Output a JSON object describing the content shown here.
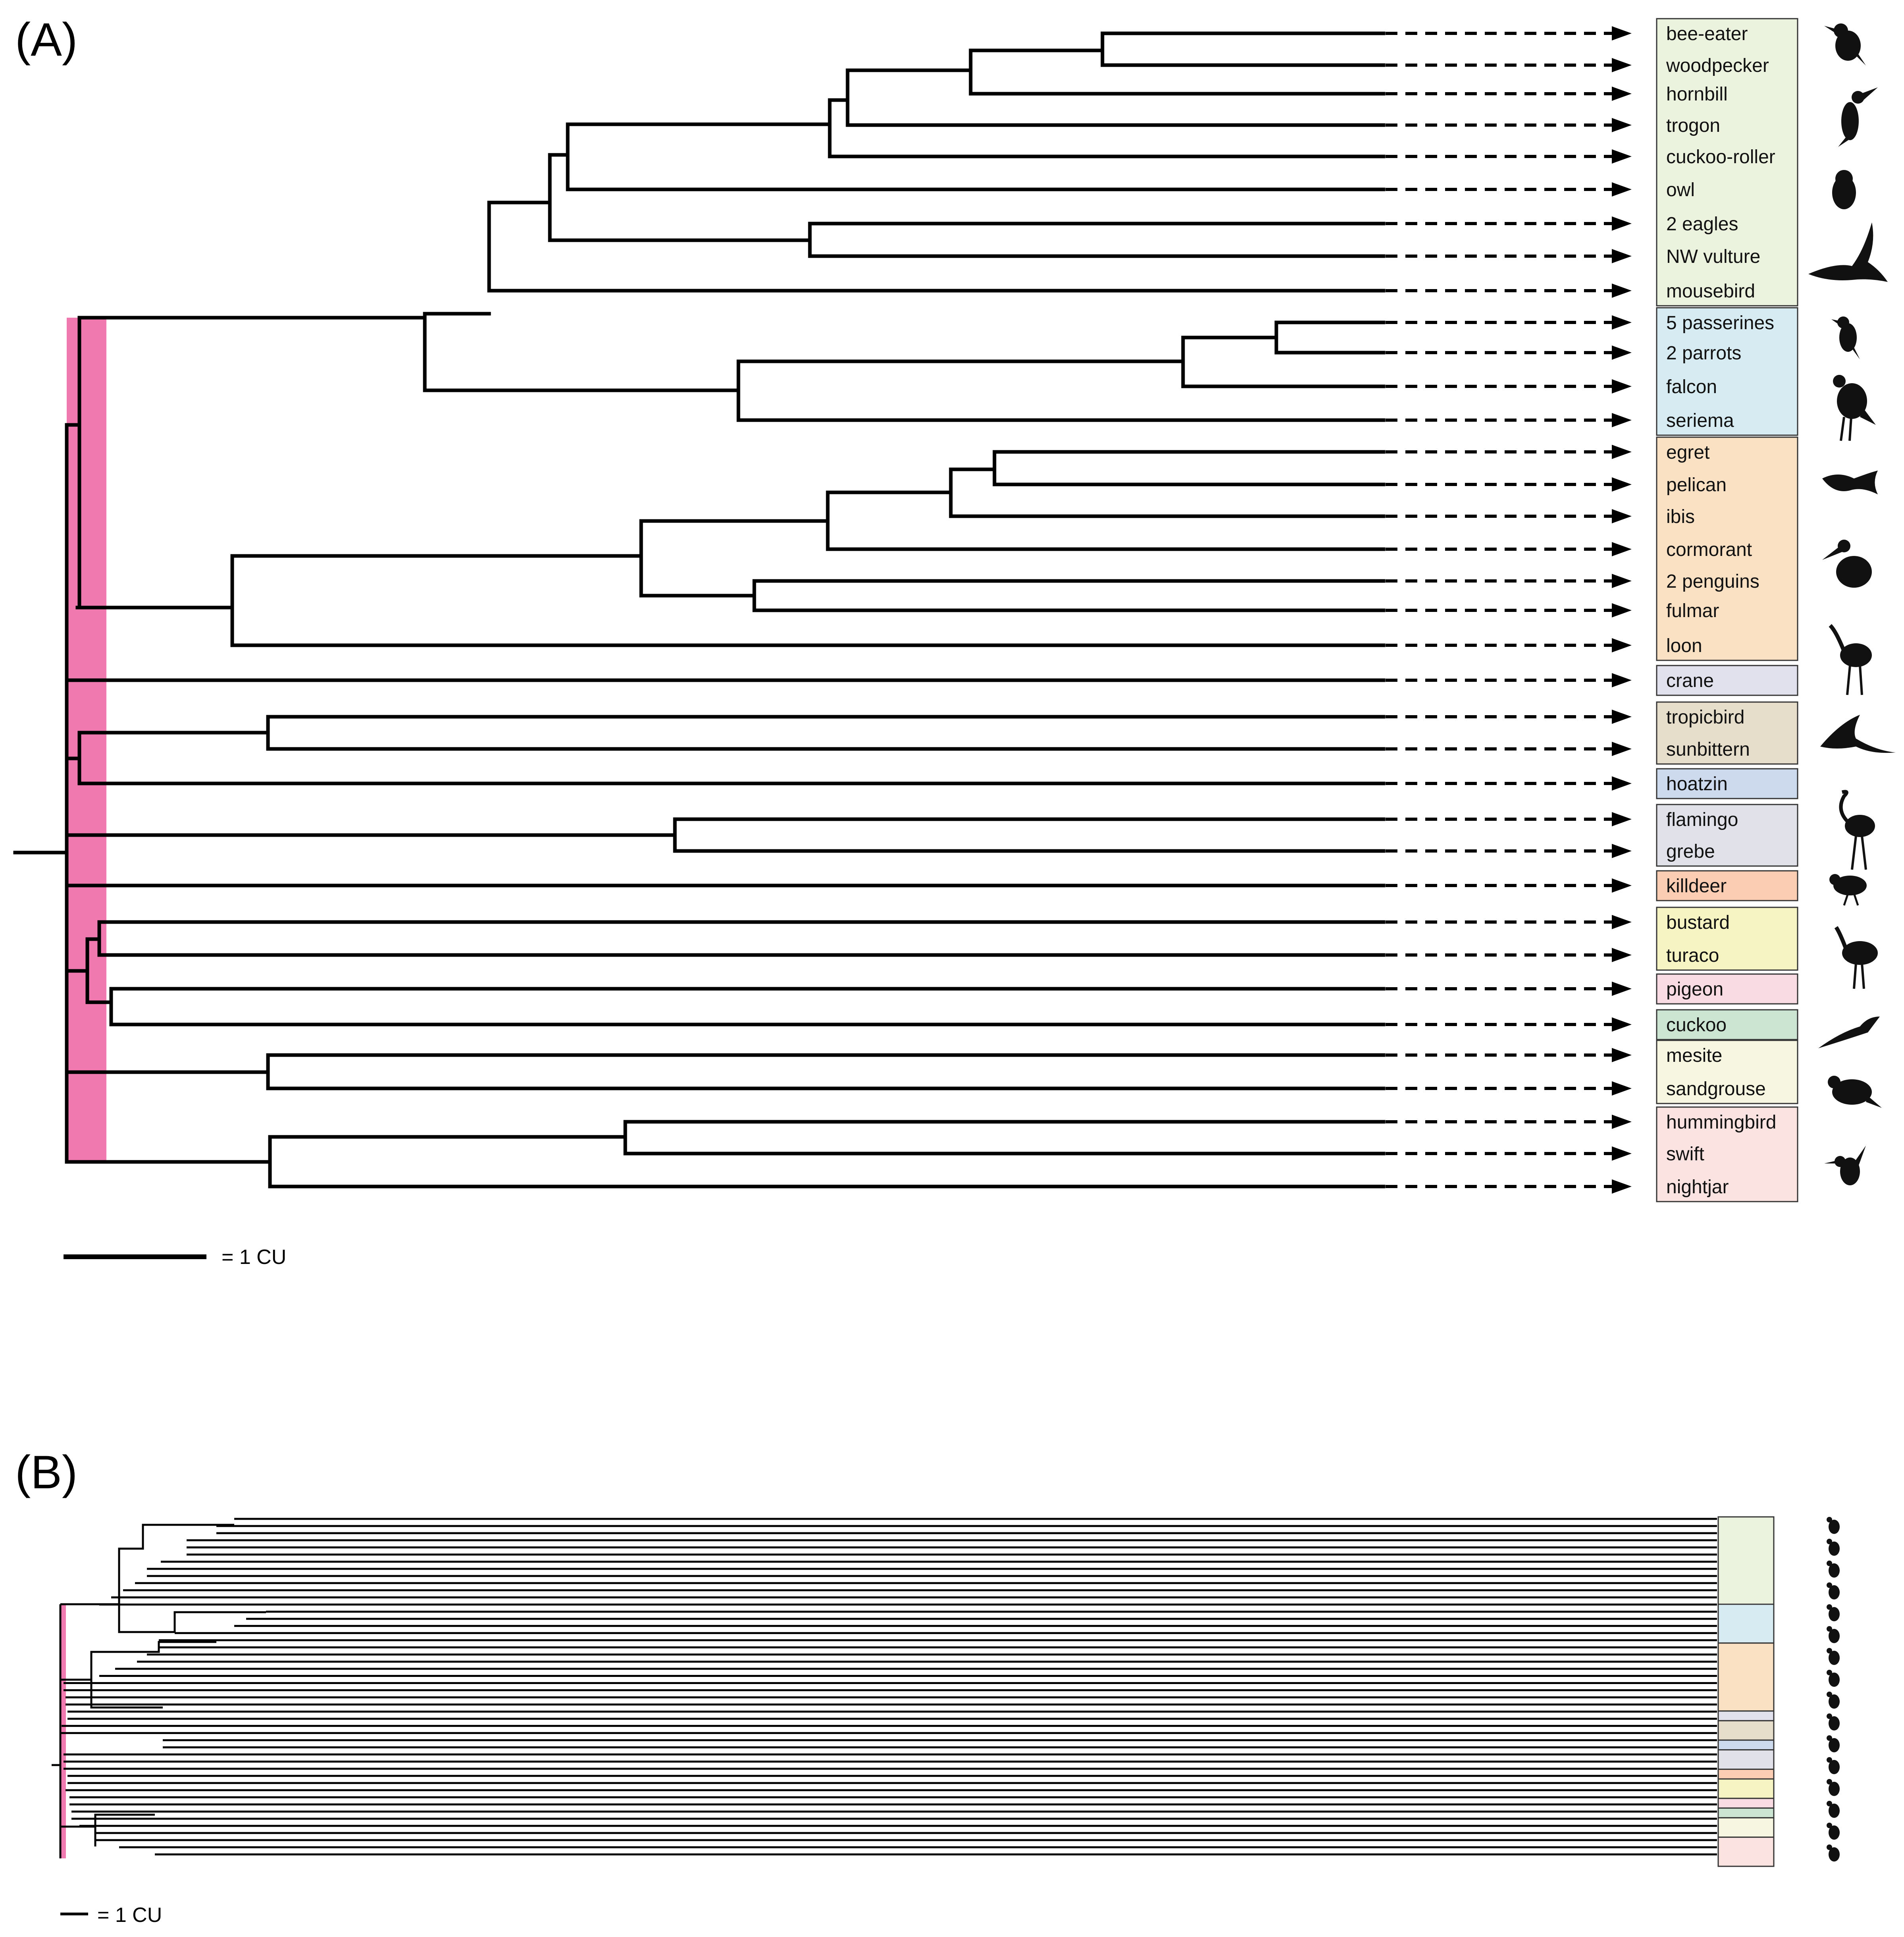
{
  "panel_a": {
    "label": "(A)",
    "scale_label": "= 1 CU",
    "clades": [
      {
        "id": "landbirds",
        "color": "#ebf2de",
        "taxa": [
          "bee-eater",
          "woodpecker",
          "hornbill",
          "trogon",
          "cuckoo-roller",
          "owl",
          "2 eagles",
          "NW vulture",
          "mousebird"
        ]
      },
      {
        "id": "australaves",
        "color": "#d7ecf2",
        "taxa": [
          "5 passerines",
          "2 parrots",
          "falcon",
          "seriema"
        ]
      },
      {
        "id": "waterbirds",
        "color": "#fbe1c4",
        "taxa": [
          "egret",
          "pelican",
          "ibis",
          "cormorant",
          "2 penguins",
          "fulmar",
          "loon"
        ]
      },
      {
        "id": "crane",
        "color": "#e1e0ed",
        "taxa": [
          "crane"
        ]
      },
      {
        "id": "eurypygiformes",
        "color": "#e6ddcb",
        "taxa": [
          "tropicbird",
          "sunbittern"
        ]
      },
      {
        "id": "hoatzin",
        "color": "#cdd9ed",
        "taxa": [
          "hoatzin"
        ]
      },
      {
        "id": "mirandornithes",
        "color": "#e1e1e9",
        "taxa": [
          "flamingo",
          "grebe"
        ]
      },
      {
        "id": "killdeer",
        "color": "#fbcdb2",
        "taxa": [
          "killdeer"
        ]
      },
      {
        "id": "otidimorphae",
        "color": "#f5f4c2",
        "taxa": [
          "bustard",
          "turaco"
        ]
      },
      {
        "id": "pigeon",
        "color": "#f9dbe3",
        "taxa": [
          "pigeon"
        ]
      },
      {
        "id": "cuckoo",
        "color": "#cce5d3",
        "taxa": [
          "cuckoo"
        ]
      },
      {
        "id": "columbimorphae",
        "color": "#f6f6e1",
        "taxa": [
          "mesite",
          "sandgrouse"
        ]
      },
      {
        "id": "strisores",
        "color": "#fbe3e1",
        "taxa": [
          "hummingbird",
          "swift",
          "nightjar"
        ]
      }
    ],
    "icons": [
      "bee-eater-silhouette",
      "hornbill-silhouette",
      "owl-silhouette",
      "eagle-silhouette",
      "passerine-silhouette",
      "seriema-silhouette",
      "cormorant-silhouette",
      "pelican-silhouette",
      "crane-silhouette",
      "tropicbird-silhouette",
      "flamingo-silhouette",
      "killdeer-silhouette",
      "bustard-silhouette",
      "cuckoo-silhouette",
      "sandgrouse-silhouette",
      "hummingbird-silhouette"
    ],
    "root_highlight_color": "#f07ab0"
  },
  "panel_b": {
    "label": "(B)",
    "scale_label": "= 1 CU",
    "leaf_count": 48
  }
}
